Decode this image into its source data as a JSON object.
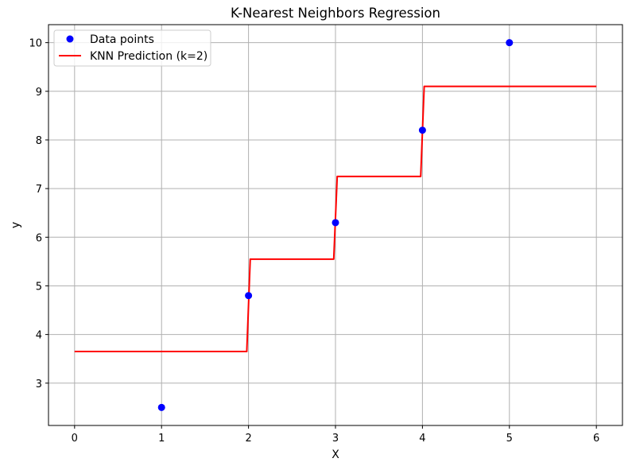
{
  "chart_data": {
    "type": "scatter",
    "title": "K-Nearest Neighbors Regression",
    "xlabel": "X",
    "ylabel": "y",
    "xlim": [
      -0.3,
      6.3
    ],
    "ylim": [
      2.13,
      10.37
    ],
    "xticks": [
      0,
      1,
      2,
      3,
      4,
      5,
      6
    ],
    "yticks": [
      3,
      4,
      5,
      6,
      7,
      8,
      9,
      10
    ],
    "grid": true,
    "legend_position": "top-left",
    "series": [
      {
        "name": "Data points",
        "kind": "scatter",
        "color": "#0000ff",
        "points": [
          {
            "x": 1,
            "y": 2.5
          },
          {
            "x": 2,
            "y": 4.8
          },
          {
            "x": 3,
            "y": 6.3
          },
          {
            "x": 4,
            "y": 8.2
          },
          {
            "x": 5,
            "y": 10.0
          }
        ]
      },
      {
        "name": "KNN Prediction (k=2)",
        "kind": "line",
        "color": "#ff0000",
        "points": [
          {
            "x": 0,
            "y": 3.65
          },
          {
            "x": 1.98,
            "y": 3.65
          },
          {
            "x": 2.02,
            "y": 5.55
          },
          {
            "x": 2.98,
            "y": 5.55
          },
          {
            "x": 3.02,
            "y": 7.25
          },
          {
            "x": 3.98,
            "y": 7.25
          },
          {
            "x": 4.02,
            "y": 9.1
          },
          {
            "x": 6,
            "y": 9.1
          }
        ]
      }
    ]
  }
}
